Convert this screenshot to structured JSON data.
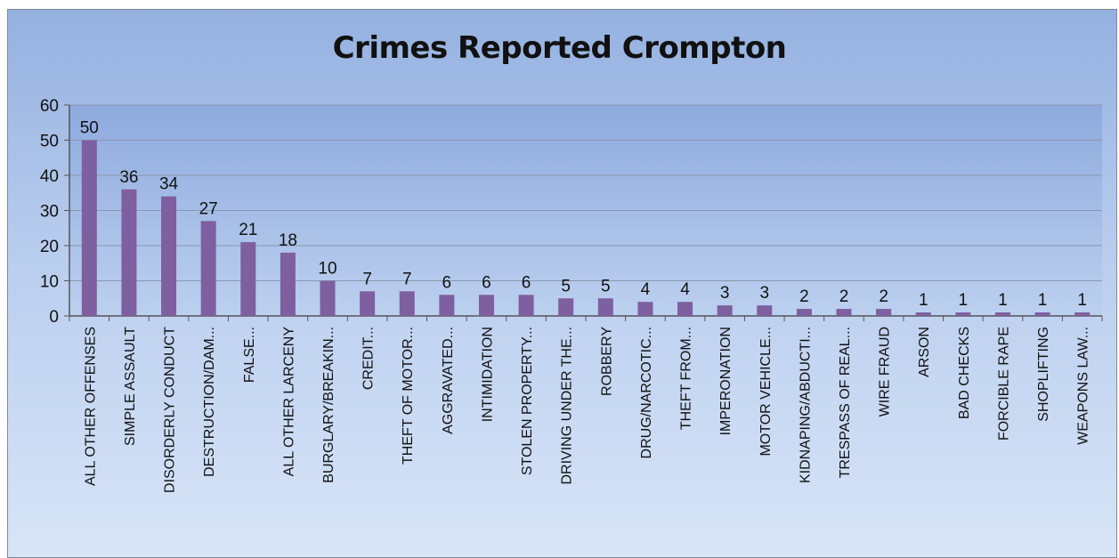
{
  "chart_data": {
    "type": "bar",
    "title": "Crimes Reported Crompton",
    "xlabel": "",
    "ylabel": "",
    "ylim": [
      0,
      60
    ],
    "yticks": [
      0,
      10,
      20,
      30,
      40,
      50,
      60
    ],
    "grid": true,
    "legend": "none",
    "bar_color": "#7e5fa0",
    "categories": [
      "ALL OTHER OFFENSES",
      "SIMPLE ASSAULT",
      "DISORDERLY CONDUCT",
      "DESTRUCTION/DAM...",
      "FALSE...",
      "ALL OTHER LARCENY",
      "BURGLARY/BREAKIN...",
      "CREDIT...",
      "THEFT OF MOTOR...",
      "AGGRAVATED...",
      "INTIMIDATION",
      "STOLEN PROPERTY...",
      "DRIVING UNDER THE...",
      "ROBBERY",
      "DRUG/NARCOTIC...",
      "THEFT FROM...",
      "IMPERONATION",
      "MOTOR VEHICLE...",
      "KIDNAPING/ABDUCTI...",
      "TRESPASS OF REAL...",
      "WIRE FRAUD",
      "ARSON",
      "BAD CHECKS",
      "FORCIBLE RAPE",
      "SHOPLIFTING",
      "WEAPONS LAW..."
    ],
    "values": [
      50,
      36,
      34,
      27,
      21,
      18,
      10,
      7,
      7,
      6,
      6,
      6,
      5,
      5,
      4,
      4,
      3,
      3,
      2,
      2,
      2,
      1,
      1,
      1,
      1,
      1
    ]
  }
}
